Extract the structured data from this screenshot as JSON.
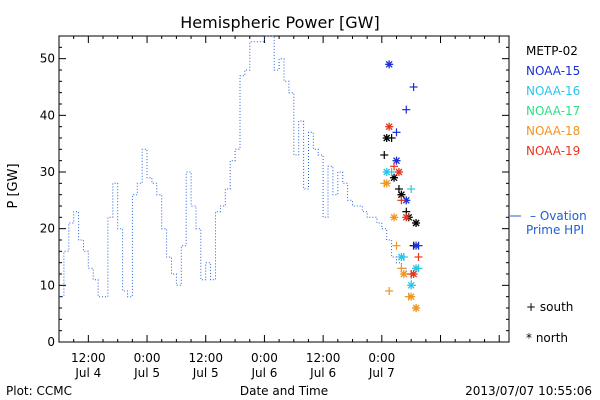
{
  "chart_data": {
    "type": "line",
    "title": "Hemispheric Power [GW]",
    "ylabel": "P [GW]",
    "xlabel": "Date and Time",
    "ylim": [
      0,
      54
    ],
    "yticks": [
      0,
      10,
      20,
      30,
      40,
      50
    ],
    "x_unit": "hours since 2013/07/04 00:00",
    "xlim": [
      6,
      98
    ],
    "xticks": [
      {
        "x": 12,
        "line1": "12:00",
        "line2": "Jul 4"
      },
      {
        "x": 24,
        "line1": "0:00",
        "line2": "Jul 5"
      },
      {
        "x": 36,
        "line1": "12:00",
        "line2": "Jul 5"
      },
      {
        "x": 48,
        "line1": "0:00",
        "line2": "Jul 6"
      },
      {
        "x": 60,
        "line1": "12:00",
        "line2": "Jul 6"
      },
      {
        "x": 72,
        "line1": "0:00",
        "line2": "Jul 7"
      },
      {
        "x": 84,
        "line1": "",
        "line2": ""
      },
      {
        "x": 96,
        "line1": "",
        "line2": ""
      }
    ],
    "ovation": {
      "name": "Ovation Prime HPI",
      "label_line1": "– Ovation",
      "label_line2": "Prime HPI",
      "color": "#1f5fd6",
      "current_value": 22,
      "x": [
        6.5,
        7.5,
        8.5,
        9.5,
        10.5,
        11.5,
        12.5,
        13.5,
        14.5,
        15.5,
        16.5,
        17.5,
        18.5,
        19.5,
        20.5,
        21.5,
        22.5,
        23.5,
        24.5,
        25.5,
        26.5,
        27.5,
        28.5,
        29.5,
        30.5,
        31.5,
        32.5,
        33.5,
        34.5,
        35.5,
        36.5,
        37.5,
        38.5,
        39.5,
        40.5,
        41.5,
        42.5,
        43.5,
        44.5,
        45.5,
        46.5,
        47.5,
        48.5,
        49.5,
        50.5,
        51.5,
        52.5,
        53.5,
        54.5,
        55.5,
        56.5,
        57.5,
        58.5,
        59.5,
        60.5,
        61.5,
        62.5,
        63.5,
        64.5,
        65.5,
        66.5,
        67.5,
        68.5,
        69.5,
        70.5,
        71.5,
        72.5,
        73.5,
        74.5,
        75.5,
        76.5,
        77.5,
        78.5
      ],
      "values": [
        8,
        16,
        21,
        23,
        18,
        16,
        13,
        11,
        8,
        8,
        22,
        28,
        20,
        9,
        8,
        26,
        28,
        34,
        29,
        28,
        26,
        20,
        15,
        12,
        10,
        17,
        30,
        24,
        20,
        11,
        14,
        11,
        23,
        24,
        27,
        32,
        34,
        47,
        48,
        53,
        53,
        53,
        55,
        54,
        48,
        50,
        46,
        44,
        33,
        39,
        27,
        37,
        34,
        33,
        22,
        31,
        26,
        30,
        28,
        25,
        24,
        24,
        23,
        22,
        22,
        21,
        20,
        18,
        15,
        14,
        13,
        12,
        10
      ]
    },
    "satellites": [
      {
        "name": "METP-02",
        "color": "#000000",
        "south": {
          "x": [
            72.5,
            74.0,
            75.5,
            77.0,
            78.5
          ],
          "y": [
            33,
            36,
            27,
            23,
            17
          ]
        },
        "north": {
          "x": [
            73.0,
            74.5,
            76.0,
            77.5,
            79.0
          ],
          "y": [
            36,
            29,
            26,
            22,
            21
          ]
        }
      },
      {
        "name": "NOAA-15",
        "color": "#1a2fd6",
        "south": {
          "x": [
            75.0,
            77.0,
            78.5,
            79.5
          ],
          "y": [
            37,
            41,
            45,
            17
          ]
        },
        "north": {
          "x": [
            73.5,
            75.0,
            77.0,
            79.0
          ],
          "y": [
            49,
            32,
            25,
            17
          ]
        }
      },
      {
        "name": "NOAA-16",
        "color": "#2ac6e6",
        "south": {
          "x": [
            74.0,
            76.5,
            78.0,
            79.5
          ],
          "y": [
            30,
            15,
            27,
            13
          ]
        },
        "north": {
          "x": [
            73.0,
            76.0,
            78.0,
            79.0
          ],
          "y": [
            30,
            15,
            10,
            13
          ]
        }
      },
      {
        "name": "NOAA-17",
        "color": "#2ee08a",
        "south": {
          "x": [],
          "y": []
        },
        "north": {
          "x": [],
          "y": []
        }
      },
      {
        "name": "NOAA-18",
        "color": "#f0961e",
        "south": {
          "x": [
            72.5,
            73.5,
            75.0,
            76.0,
            77.5,
            79.0
          ],
          "y": [
            28,
            9,
            17,
            13,
            8,
            6
          ]
        },
        "north": {
          "x": [
            73.0,
            74.5,
            76.5,
            78.0,
            79.0
          ],
          "y": [
            28,
            22,
            12,
            8,
            6
          ]
        }
      },
      {
        "name": "NOAA-19",
        "color": "#e8361e",
        "south": {
          "x": [
            74.5,
            76.0,
            78.0,
            79.5
          ],
          "y": [
            31,
            25,
            12,
            15
          ]
        },
        "north": {
          "x": [
            73.5,
            75.5,
            77.0,
            78.5
          ],
          "y": [
            38,
            30,
            22,
            12
          ]
        }
      }
    ],
    "markers_legend": {
      "south": "+ south",
      "north": "* north"
    },
    "grid": false,
    "legend_position": "right"
  },
  "footer": {
    "plot_credit": "Plot: CCMC",
    "timestamp": "2013/07/07  10:55:06"
  }
}
